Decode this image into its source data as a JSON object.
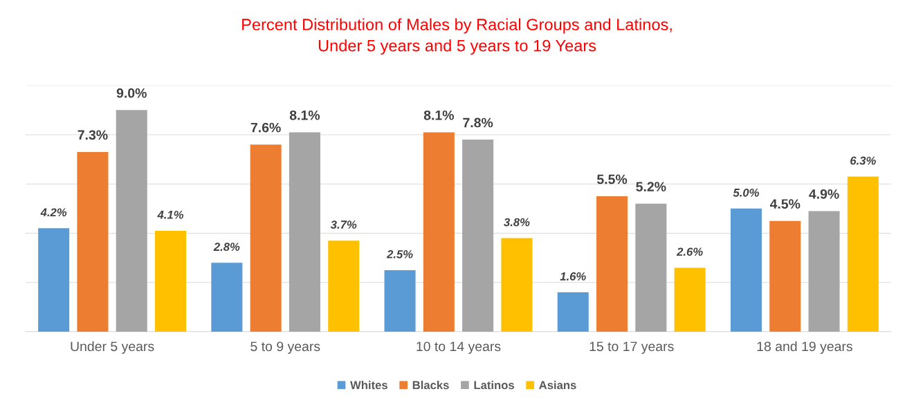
{
  "chart_data": {
    "type": "bar",
    "title": "Percent Distribution of Males by Racial Groups and Latinos,\nUnder 5 years and 5 years to 19 Years",
    "categories": [
      "Under 5 years",
      "5 to 9 years",
      "10 to 14 years",
      "15 to 17 years",
      "18 and 19 years"
    ],
    "series": [
      {
        "name": "Whites",
        "color": "#5b9bd5",
        "values": [
          4.2,
          2.8,
          2.5,
          1.6,
          5.0
        ],
        "value_labels": [
          "4.2%",
          "2.8%",
          "2.5%",
          "1.6%",
          "5.0%"
        ]
      },
      {
        "name": "Blacks",
        "color": "#ed7d31",
        "values": [
          7.3,
          7.6,
          8.1,
          5.5,
          4.5
        ],
        "value_labels": [
          "7.3%",
          "7.6%",
          "8.1%",
          "5.5%",
          "4.5%"
        ]
      },
      {
        "name": "Latinos",
        "color": "#a5a5a5",
        "values": [
          9.0,
          8.1,
          7.8,
          5.2,
          4.9
        ],
        "value_labels": [
          "9.0%",
          "8.1%",
          "7.8%",
          "5.2%",
          "4.9%"
        ]
      },
      {
        "name": "Asians",
        "color": "#ffc000",
        "values": [
          4.1,
          3.7,
          3.8,
          2.6,
          6.3
        ],
        "value_labels": [
          "4.1%",
          "3.7%",
          "3.8%",
          "2.6%",
          "6.3%"
        ]
      }
    ],
    "ylim": [
      0,
      10
    ],
    "yticks": [
      {
        "value": 0,
        "label": null
      },
      {
        "value": 2,
        "label": null
      },
      {
        "value": 4,
        "label": null
      },
      {
        "value": 6,
        "label": null
      },
      {
        "value": 8,
        "label": null
      },
      {
        "value": 10,
        "label": null
      }
    ],
    "tick_labels": "x",
    "grid": "y",
    "legend": "bottom"
  }
}
